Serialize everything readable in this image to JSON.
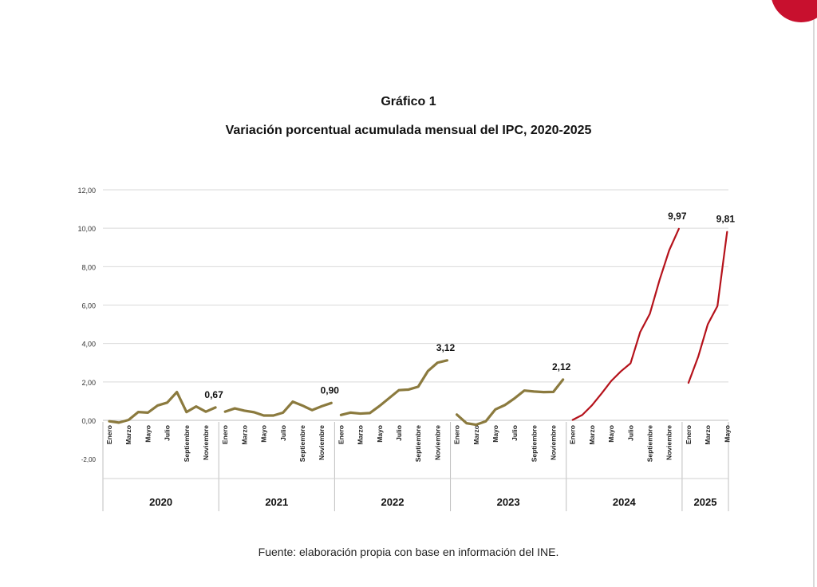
{
  "title": "Gráfico 1",
  "subtitle": "Variación porcentual acumulada mensual del IPC, 2020-2025",
  "source": "Fuente: elaboración propia con base en información del INE.",
  "colors": {
    "series_main": "#8b7a3e",
    "series_recent": "#b5121b",
    "accent": "#c8102e",
    "grid": "#d9d9d9"
  },
  "chart_data": {
    "type": "line",
    "y_ticks": [
      "12,00",
      "10,00",
      "8,00",
      "6,00",
      "4,00",
      "2,00",
      "0,00",
      "-2,00"
    ],
    "ylim": [
      -2,
      12
    ],
    "grid": true,
    "month_labels": [
      "Enero",
      "Marzo",
      "Mayo",
      "Julio",
      "Septiembre",
      "Noviembre"
    ],
    "series": [
      {
        "year": "2020",
        "color_key": "series_main",
        "values": [
          -0.05,
          -0.12,
          0.02,
          0.43,
          0.4,
          0.77,
          0.92,
          1.47,
          0.43,
          0.72,
          0.45,
          0.67
        ],
        "end_label": "0,67"
      },
      {
        "year": "2021",
        "color_key": "series_main",
        "values": [
          0.45,
          0.62,
          0.5,
          0.42,
          0.25,
          0.25,
          0.4,
          0.97,
          0.77,
          0.53,
          0.73,
          0.9
        ],
        "end_label": "0,90"
      },
      {
        "year": "2022",
        "color_key": "series_main",
        "values": [
          0.28,
          0.4,
          0.35,
          0.38,
          0.75,
          1.16,
          1.57,
          1.6,
          1.75,
          2.56,
          3.0,
          3.12
        ],
        "end_label": "3,12"
      },
      {
        "year": "2023",
        "color_key": "series_main",
        "values": [
          0.3,
          -0.15,
          -0.23,
          -0.05,
          0.57,
          0.8,
          1.15,
          1.55,
          1.5,
          1.47,
          1.48,
          2.12
        ],
        "end_label": "2,12"
      },
      {
        "year": "2024",
        "color_key": "series_recent",
        "values": [
          0.02,
          0.28,
          0.78,
          1.4,
          2.05,
          2.55,
          2.97,
          4.6,
          5.55,
          7.3,
          8.85,
          9.97
        ],
        "end_label": "9,97"
      },
      {
        "year": "2025",
        "color_key": "series_recent",
        "values": [
          1.95,
          3.3,
          5.0,
          5.95,
          9.81
        ],
        "end_label": "9,81"
      }
    ]
  }
}
